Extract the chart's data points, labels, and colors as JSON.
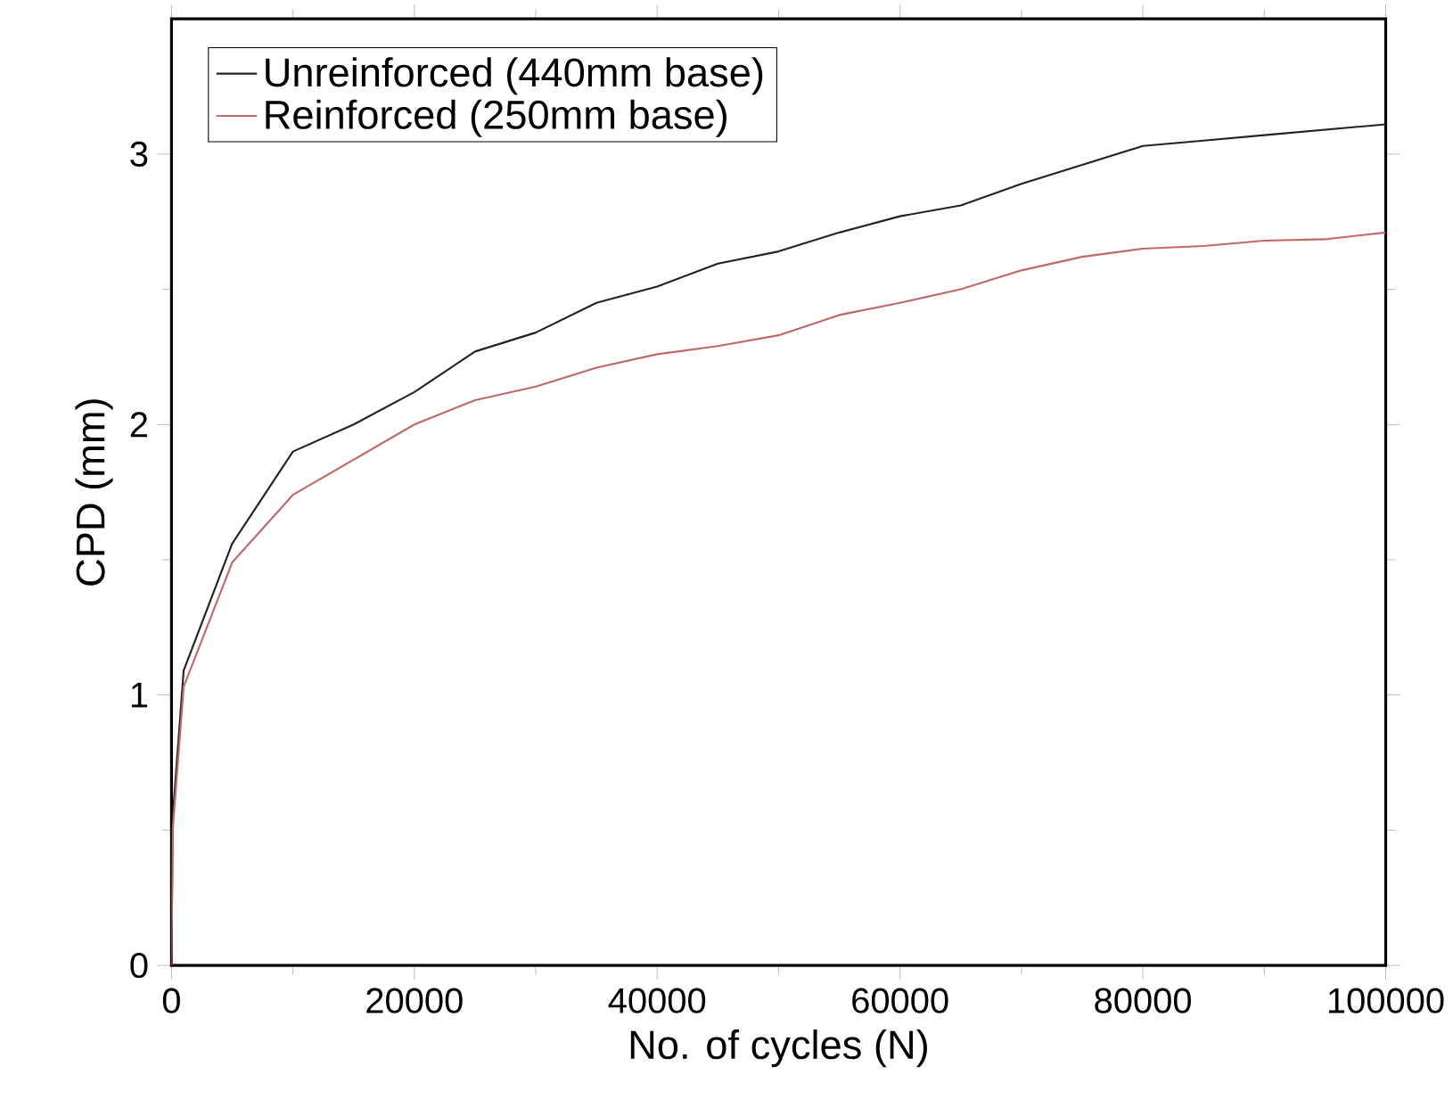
{
  "chart_data": {
    "type": "line",
    "xlabel": "No. of cycles (N)",
    "ylabel": "CPD (mm)",
    "xlim": [
      0,
      100000
    ],
    "ylim": [
      0,
      3.5
    ],
    "xticks": [
      0,
      20000,
      40000,
      60000,
      80000,
      100000
    ],
    "yticks": [
      0,
      1,
      2,
      3
    ],
    "legend": "top left",
    "grid": false,
    "marker": "none",
    "line_style": "solid",
    "x": [
      0,
      100,
      1000,
      5000,
      10000,
      15000,
      20000,
      25000,
      30000,
      35000,
      40000,
      45000,
      50000,
      55000,
      60000,
      65000,
      70000,
      75000,
      80000,
      85000,
      90000,
      95000,
      100000
    ],
    "series": [
      {
        "name": "Unreinforced (440mm base)",
        "color": "#222222",
        "values": [
          0,
          0.55,
          1.09,
          1.56,
          1.9,
          2.0,
          2.12,
          2.27,
          2.34,
          2.45,
          2.51,
          2.595,
          2.64,
          2.71,
          2.77,
          2.81,
          2.89,
          2.96,
          3.03,
          3.05,
          3.07,
          3.09,
          3.11
        ]
      },
      {
        "name": "Reinforced (250mm base)",
        "color": "#c06868",
        "values": [
          0,
          0.5,
          1.03,
          1.49,
          1.74,
          1.87,
          2.0,
          2.09,
          2.14,
          2.21,
          2.26,
          2.29,
          2.33,
          2.405,
          2.45,
          2.5,
          2.57,
          2.62,
          2.65,
          2.66,
          2.68,
          2.685,
          2.71
        ]
      }
    ]
  }
}
